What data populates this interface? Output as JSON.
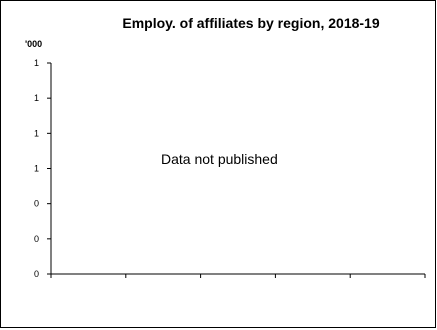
{
  "chart_data": {
    "type": "bar",
    "title": "Employ. of affiliates by region, 2018-19",
    "ylabel": "'000",
    "y_ticks": [
      "1",
      "1",
      "1",
      "1",
      "0",
      "0",
      "0"
    ],
    "x_tick_count": 5,
    "categories": [],
    "values": [],
    "annotation": "Data not published"
  }
}
